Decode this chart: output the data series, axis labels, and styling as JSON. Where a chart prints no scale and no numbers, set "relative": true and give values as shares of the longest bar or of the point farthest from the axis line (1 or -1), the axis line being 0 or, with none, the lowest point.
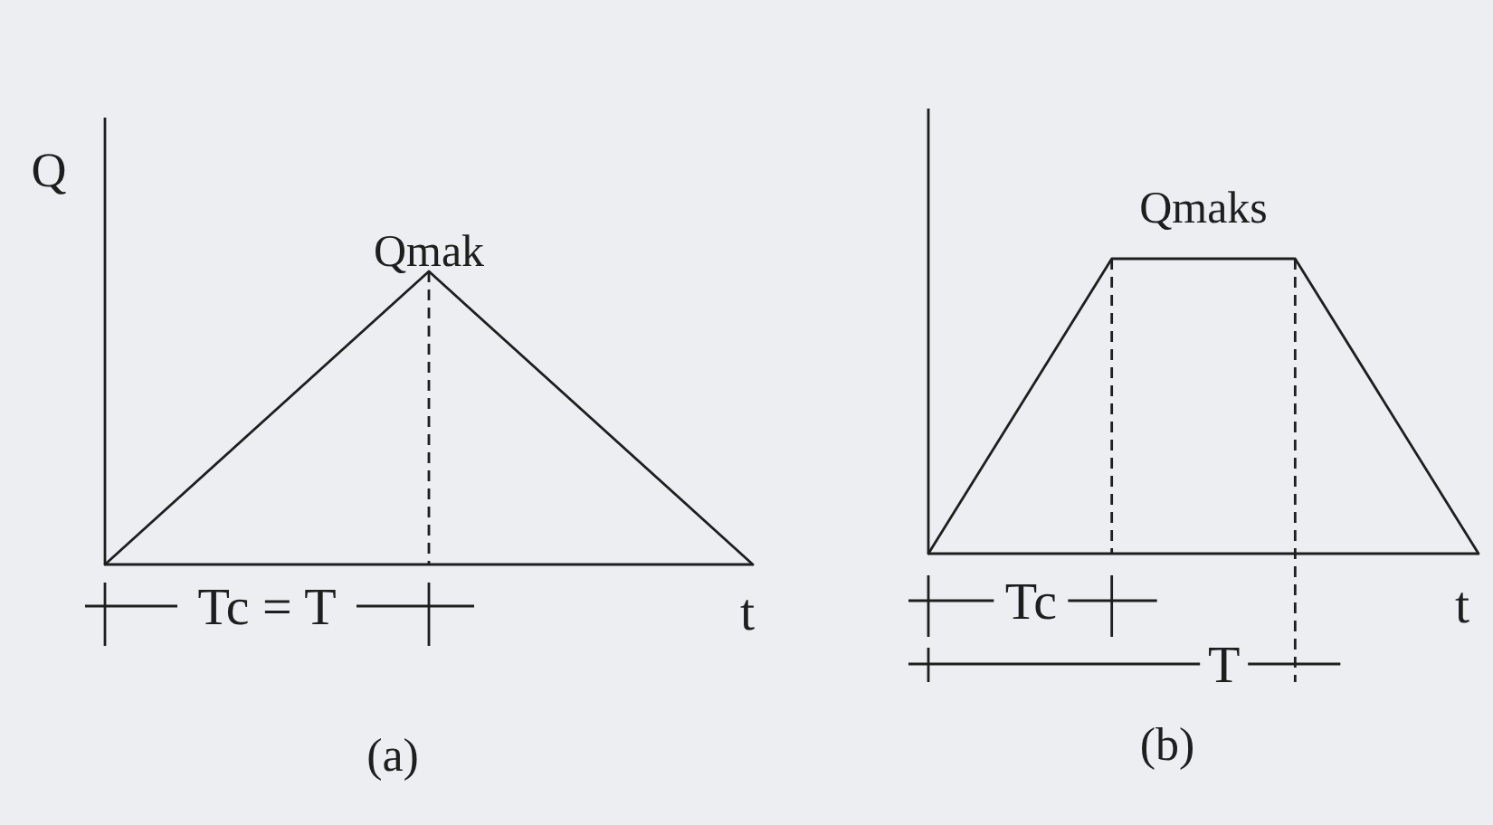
{
  "chart_data": [
    {
      "type": "line",
      "title": "(a)",
      "ylabel": "Q",
      "xlabel": "t",
      "relative": true,
      "categories": [
        null,
        null,
        null
      ],
      "series": [
        {
          "color": "#1e1e1e",
          "values": [
            0,
            1,
            0
          ]
        }
      ],
      "annotations": [
        "Qmak",
        "Tc = T"
      ]
    },
    {
      "type": "line",
      "title": "(b)",
      "xlabel": "t",
      "relative": true,
      "categories": [
        null,
        null,
        null,
        null
      ],
      "series": [
        {
          "color": "#1e1e1e",
          "values": [
            0,
            1,
            1,
            0
          ]
        }
      ],
      "annotations": [
        "Qmaks",
        "Tc",
        "T"
      ]
    }
  ]
}
